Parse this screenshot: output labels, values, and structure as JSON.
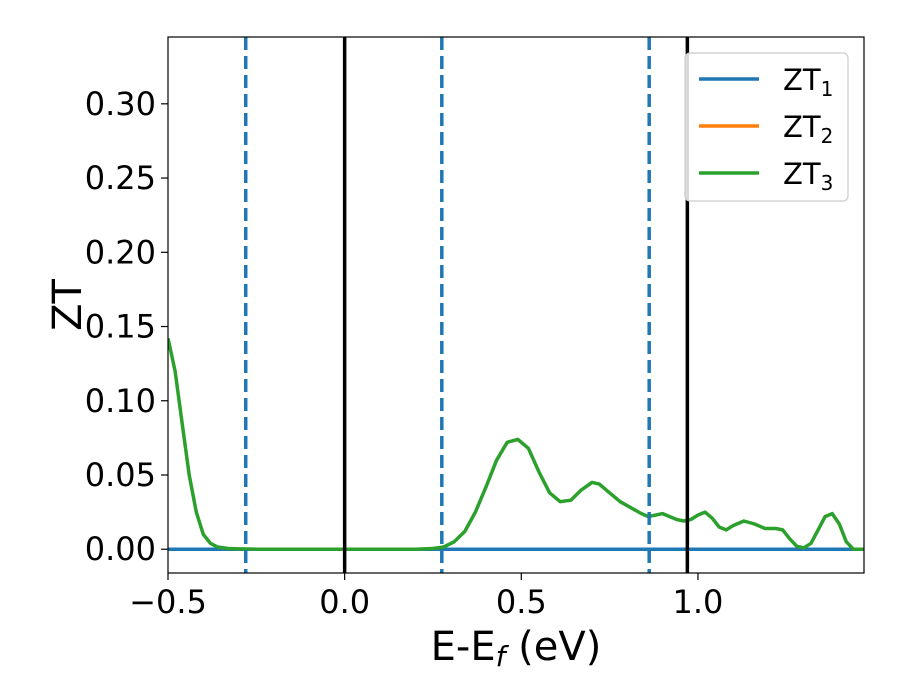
{
  "chart_data": {
    "type": "line",
    "xlabel_main": "E-E",
    "xlabel_sub": "f",
    "xlabel_unit": " (eV)",
    "ylabel": "ZT",
    "xlim": [
      -0.5,
      1.47
    ],
    "ylim": [
      -0.016,
      0.345
    ],
    "x_ticks": [
      -0.5,
      0.0,
      0.5,
      1.0
    ],
    "x_tick_labels": [
      "−0.5",
      "0.0",
      "0.5",
      "1.0"
    ],
    "y_ticks": [
      0.0,
      0.05,
      0.1,
      0.15,
      0.2,
      0.25,
      0.3
    ],
    "y_tick_labels": [
      "0.00",
      "0.05",
      "0.10",
      "0.15",
      "0.20",
      "0.25",
      "0.30"
    ],
    "grid": false,
    "legend_position": "top-right",
    "vlines_solid": [
      0.0,
      0.97
    ],
    "vlines_dashed": [
      -0.28,
      0.275,
      0.862
    ],
    "series": [
      {
        "name": "ZT",
        "subscript": "1",
        "color": "#1f77b4",
        "x": [
          -0.5,
          1.47
        ],
        "y": [
          0.0,
          0.0
        ]
      },
      {
        "name": "ZT",
        "subscript": "2",
        "color": "#ff7f0e",
        "x": [],
        "y": []
      },
      {
        "name": "ZT",
        "subscript": "3",
        "color": "#2ca02c",
        "x": [
          -0.5,
          -0.48,
          -0.46,
          -0.44,
          -0.42,
          -0.4,
          -0.38,
          -0.36,
          -0.33,
          -0.3,
          -0.25,
          -0.2,
          0.0,
          0.2,
          0.25,
          0.28,
          0.31,
          0.34,
          0.37,
          0.4,
          0.43,
          0.46,
          0.49,
          0.52,
          0.55,
          0.58,
          0.61,
          0.64,
          0.67,
          0.7,
          0.72,
          0.75,
          0.78,
          0.81,
          0.84,
          0.86,
          0.88,
          0.9,
          0.92,
          0.94,
          0.96,
          0.98,
          1.0,
          1.02,
          1.04,
          1.06,
          1.08,
          1.1,
          1.13,
          1.16,
          1.19,
          1.22,
          1.24,
          1.26,
          1.28,
          1.3,
          1.32,
          1.34,
          1.36,
          1.38,
          1.4,
          1.42,
          1.44,
          1.47
        ],
        "y": [
          0.142,
          0.12,
          0.085,
          0.05,
          0.025,
          0.01,
          0.004,
          0.0015,
          0.0005,
          0.0002,
          0.0,
          0.0,
          0.0,
          0.0,
          0.0005,
          0.0015,
          0.005,
          0.012,
          0.025,
          0.042,
          0.06,
          0.072,
          0.074,
          0.068,
          0.052,
          0.038,
          0.032,
          0.033,
          0.04,
          0.045,
          0.044,
          0.038,
          0.032,
          0.028,
          0.024,
          0.022,
          0.023,
          0.024,
          0.022,
          0.02,
          0.019,
          0.02,
          0.023,
          0.025,
          0.021,
          0.015,
          0.013,
          0.016,
          0.019,
          0.017,
          0.014,
          0.014,
          0.013,
          0.007,
          0.002,
          0.001,
          0.004,
          0.013,
          0.022,
          0.024,
          0.017,
          0.005,
          0.0,
          0.0
        ]
      }
    ]
  }
}
